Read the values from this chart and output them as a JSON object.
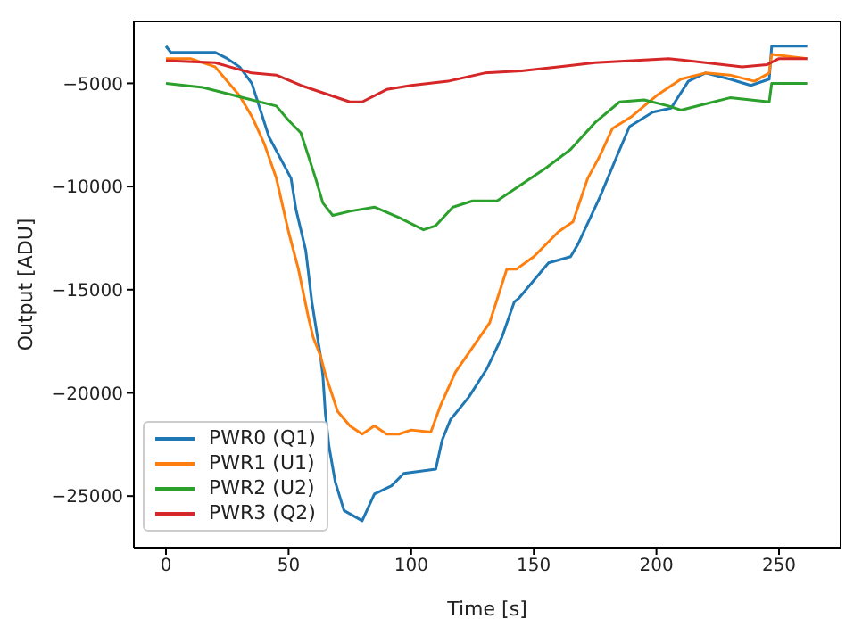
{
  "chart_data": {
    "type": "line",
    "xlabel": "Time [s]",
    "ylabel": "Output [ADU]",
    "xlim": [
      -13.1,
      275.1
    ],
    "ylim": [
      -27500,
      -2000
    ],
    "xticks": [
      0,
      50,
      100,
      150,
      200,
      250
    ],
    "yticks": [
      -25000,
      -20000,
      -15000,
      -10000,
      -5000
    ],
    "legend": "bottom left",
    "marker": "none",
    "line_style": "solid",
    "series": [
      {
        "name": "PWR0 (Q1)",
        "color": "#1f77b4",
        "x": [
          0,
          2,
          20,
          25,
          30,
          35,
          42,
          51,
          53,
          57,
          59.5,
          63,
          64,
          65,
          66.5,
          69,
          72.6,
          80,
          85,
          92,
          97,
          110,
          112.6,
          116,
          123.5,
          131,
          137,
          142,
          144,
          156,
          165,
          168,
          177,
          184,
          189,
          198.5,
          206,
          213,
          220,
          230,
          238.5,
          246,
          247,
          261.5
        ],
        "values": [
          -3200,
          -3500,
          -3500,
          -3800,
          -4200,
          -5000,
          -7600,
          -9600,
          -11100,
          -13100,
          -15600,
          -18200,
          -19200,
          -21000,
          -22600,
          -24300,
          -25700,
          -26200,
          -24900,
          -24500,
          -23900,
          -23700,
          -22300,
          -21300,
          -20200,
          -18800,
          -17300,
          -15600,
          -15400,
          -13700,
          -13400,
          -12800,
          -10500,
          -8500,
          -7100,
          -6400,
          -6200,
          -4900,
          -4500,
          -4800,
          -5100,
          -4800,
          -3200,
          -3200
        ]
      },
      {
        "name": "PWR1 (U1)",
        "color": "#ff7f0e",
        "x": [
          0,
          10,
          20,
          30,
          35,
          40,
          45,
          50,
          54,
          58,
          60,
          63,
          65,
          70,
          75,
          80,
          85,
          90,
          95,
          100,
          108,
          112,
          118,
          125,
          132,
          139,
          143,
          150,
          160,
          166,
          172,
          177,
          182,
          190,
          200,
          210,
          220,
          230,
          240,
          246,
          247,
          261.5
        ],
        "values": [
          -3800,
          -3800,
          -4200,
          -5600,
          -6600,
          -7900,
          -9600,
          -12200,
          -14000,
          -16300,
          -17300,
          -18200,
          -19100,
          -20900,
          -21600,
          -22000,
          -21600,
          -22000,
          -22000,
          -21800,
          -21900,
          -20600,
          -19000,
          -17800,
          -16600,
          -14000,
          -14000,
          -13400,
          -12200,
          -11700,
          -9600,
          -8500,
          -7200,
          -6600,
          -5600,
          -4800,
          -4500,
          -4600,
          -4900,
          -4500,
          -3600,
          -3800
        ]
      },
      {
        "name": "PWR2 (U2)",
        "color": "#2ca02c",
        "x": [
          0,
          15,
          25,
          35,
          45,
          50,
          55,
          58,
          61,
          64,
          68,
          75,
          85,
          95,
          105,
          110,
          117,
          125,
          135,
          145,
          155,
          165,
          175,
          185,
          195,
          205,
          210,
          220,
          230,
          246,
          247,
          261.5
        ],
        "values": [
          -5000,
          -5200,
          -5500,
          -5800,
          -6100,
          -6800,
          -7400,
          -8500,
          -9600,
          -10800,
          -11400,
          -11200,
          -11000,
          -11500,
          -12100,
          -11900,
          -11000,
          -10700,
          -10700,
          -9900,
          -9100,
          -8200,
          -6900,
          -5900,
          -5800,
          -6100,
          -6300,
          -6000,
          -5700,
          -5900,
          -5000,
          -5000
        ]
      },
      {
        "name": "PWR3 (Q2)",
        "color": "#d62728",
        "x": [
          0,
          20,
          35,
          45,
          55,
          65,
          75,
          80,
          90,
          100,
          115,
          130,
          145,
          160,
          175,
          190,
          205,
          220,
          235,
          245,
          250,
          261.5
        ],
        "values": [
          -3900,
          -4000,
          -4500,
          -4600,
          -5100,
          -5500,
          -5900,
          -5900,
          -5300,
          -5100,
          -4900,
          -4500,
          -4400,
          -4200,
          -4000,
          -3900,
          -3800,
          -4000,
          -4200,
          -4100,
          -3800,
          -3800
        ]
      }
    ]
  }
}
